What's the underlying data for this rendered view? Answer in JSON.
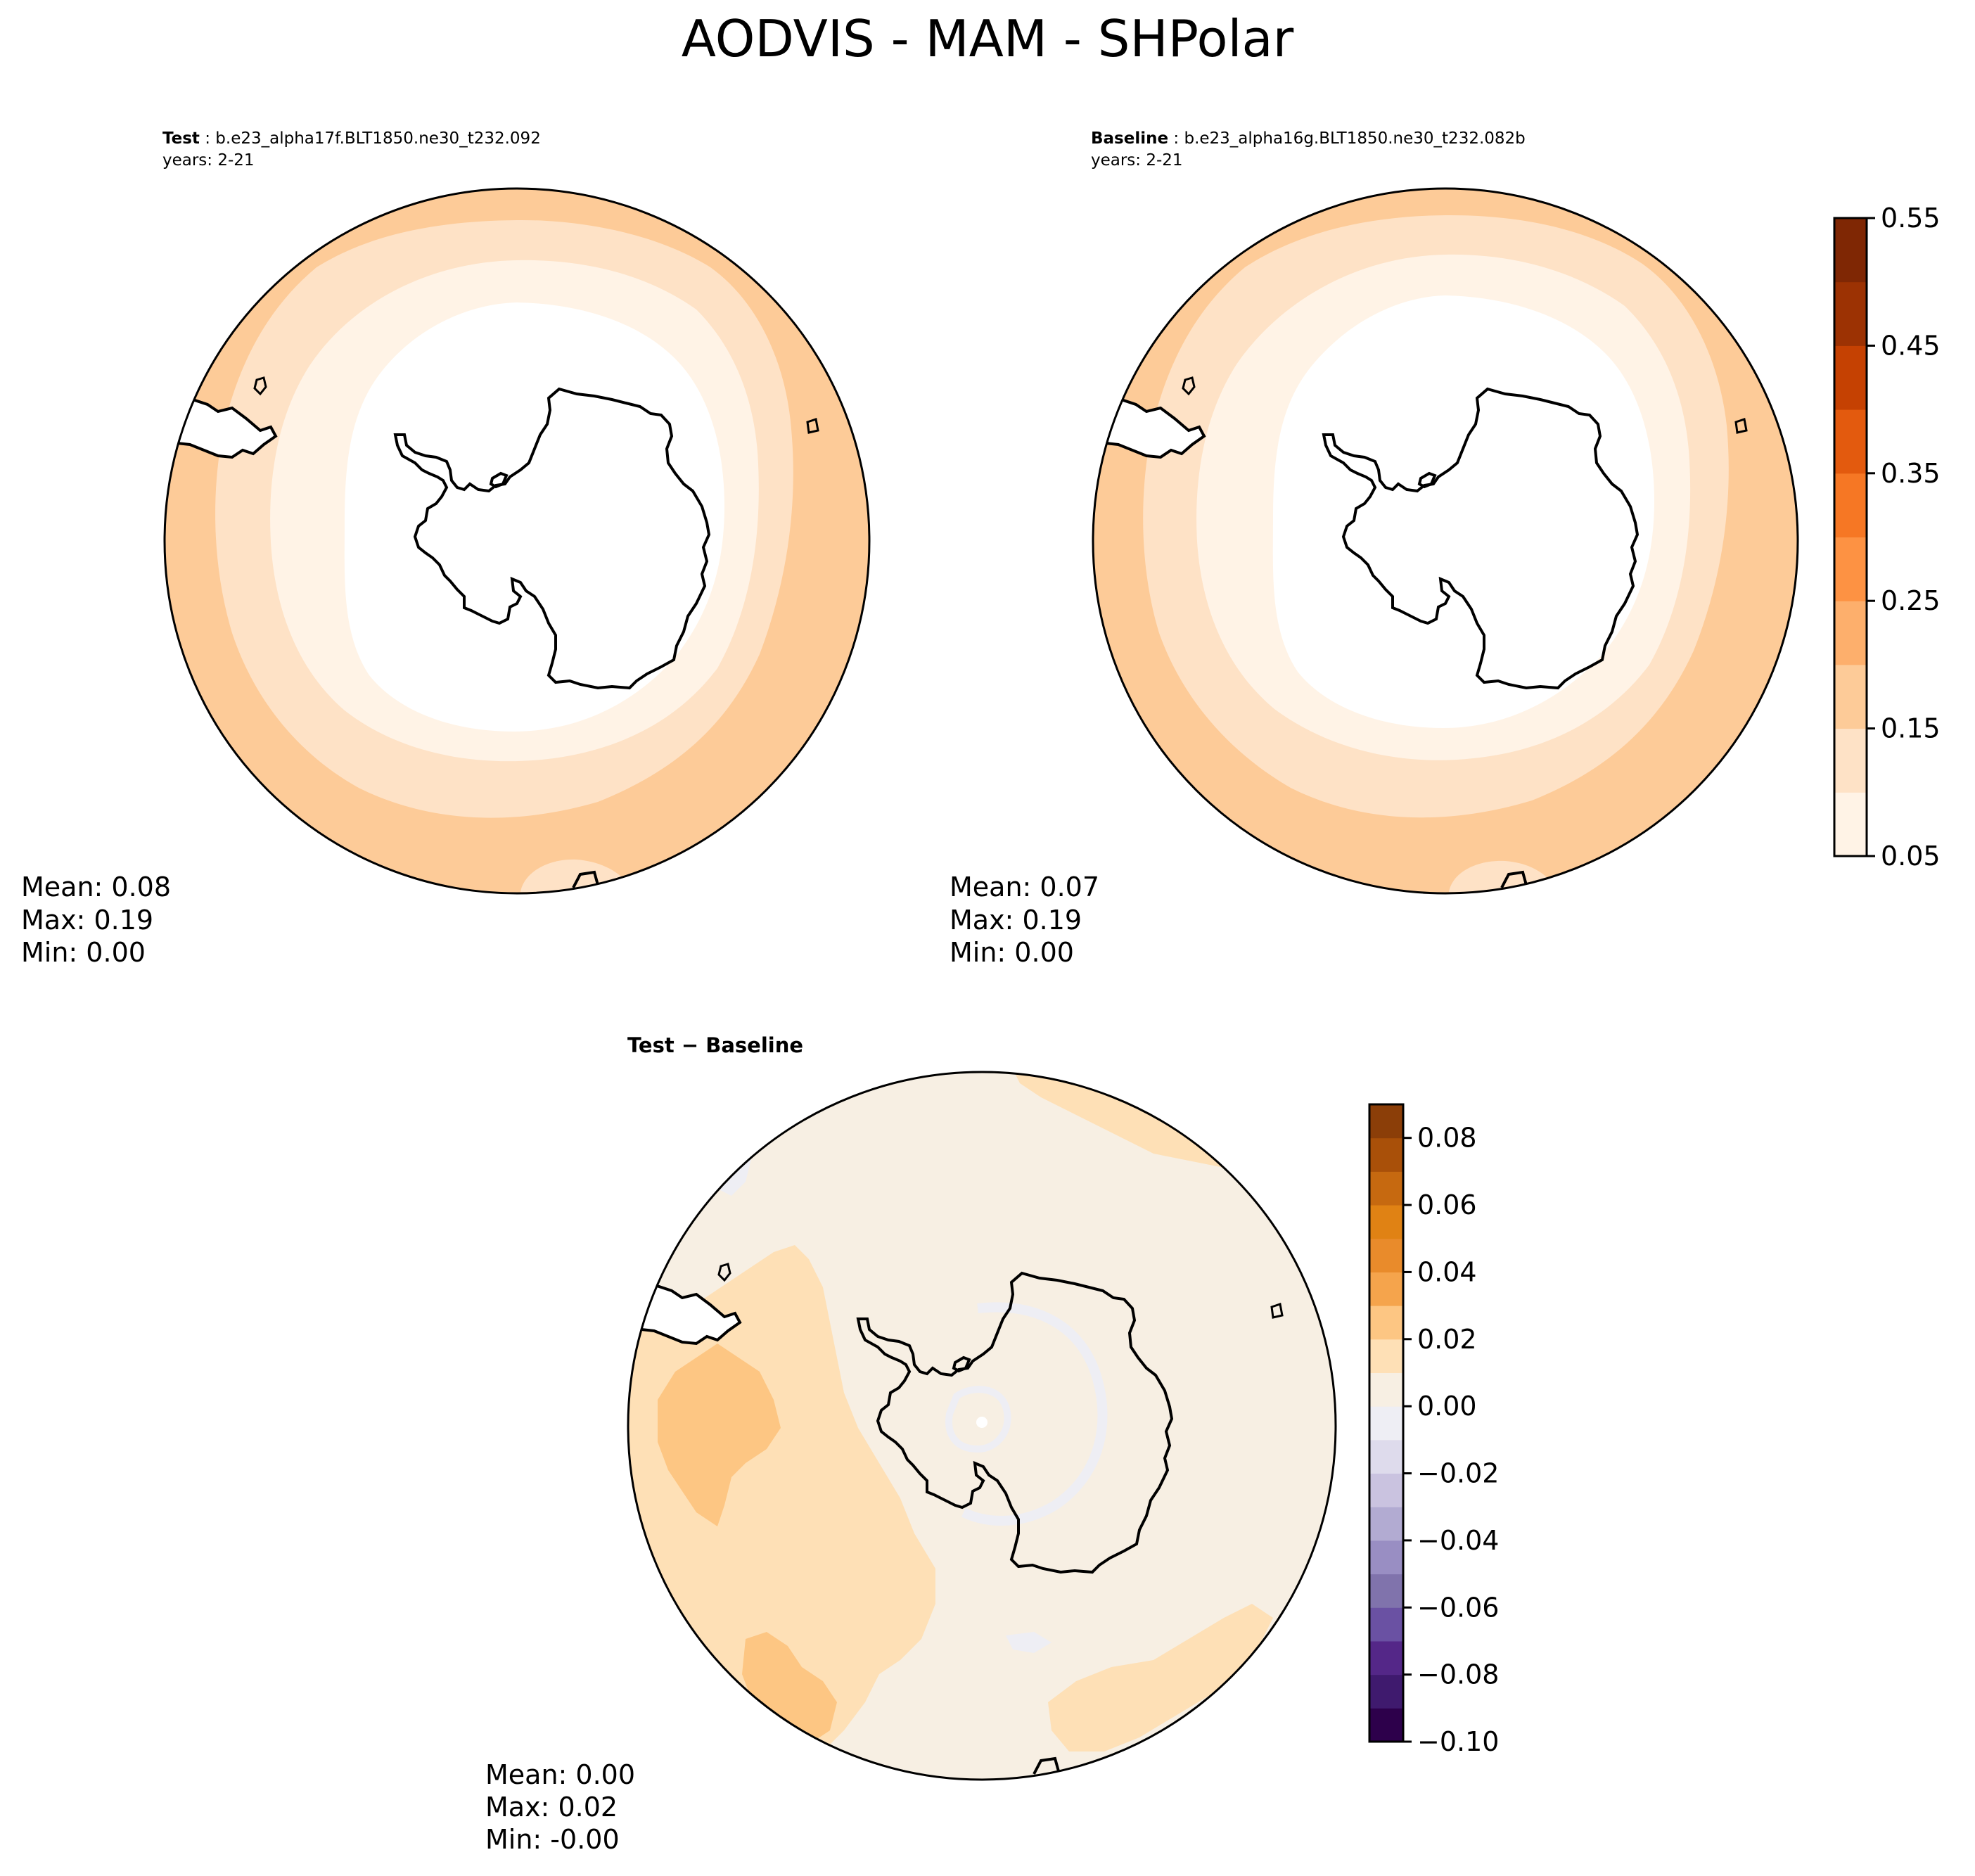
{
  "chart_data": {
    "type": "heatmap",
    "title": "AODVIS - MAM - SHPolar",
    "panels": [
      {
        "id": "test",
        "label_bold": "Test",
        "case_name": "b.e23_alpha17f.BLT1850.ne30_t232.092",
        "years": "years: 2-21",
        "projection": "south-polar-stereographic",
        "stats": {
          "mean": "Mean:  0.08",
          "max": "Max:  0.19",
          "min": "Min:  0.00"
        },
        "approx_field_bands_latitude": [
          {
            "from_lat": -90,
            "to_lat": -62,
            "level": "0.00-0.05"
          },
          {
            "from_lat": -62,
            "to_lat": -56,
            "level": "0.05-0.10"
          },
          {
            "from_lat": -56,
            "to_lat": -50,
            "level": "0.10-0.15"
          },
          {
            "from_lat": -50,
            "to_lat": -45,
            "level": "0.15-0.20"
          }
        ]
      },
      {
        "id": "baseline",
        "label_bold": "Baseline",
        "case_name": "b.e23_alpha16g.BLT1850.ne30_t232.082b",
        "years": "years: 2-21",
        "projection": "south-polar-stereographic",
        "stats": {
          "mean": "Mean:  0.07",
          "max": "Max:  0.19",
          "min": "Min:  0.00"
        },
        "approx_field_bands_latitude": [
          {
            "from_lat": -90,
            "to_lat": -61,
            "level": "0.00-0.05"
          },
          {
            "from_lat": -61,
            "to_lat": -55,
            "level": "0.05-0.10"
          },
          {
            "from_lat": -55,
            "to_lat": -49,
            "level": "0.10-0.15"
          },
          {
            "from_lat": -49,
            "to_lat": -45,
            "level": "0.15-0.20"
          }
        ]
      },
      {
        "id": "diff",
        "label": "Test − Baseline",
        "projection": "south-polar-stereographic",
        "stats": {
          "mean": "Mean:  0.00",
          "max": "Max:  0.02",
          "min": "Min: -0.00"
        },
        "dominant_level": "0.00-0.01",
        "secondary_level": "0.01-0.02",
        "minor_level": "-0.01-0.00"
      }
    ],
    "colorbars": [
      {
        "id": "main",
        "cmap": "Oranges",
        "range": [
          0.05,
          0.55
        ],
        "levels": [
          0.05,
          0.1,
          0.15,
          0.2,
          0.25,
          0.3,
          0.35,
          0.4,
          0.45,
          0.5,
          0.55
        ],
        "tick_values": [
          0.05,
          0.15,
          0.25,
          0.35,
          0.45,
          0.55
        ],
        "tick_labels": [
          "0.05",
          "0.15",
          "0.25",
          "0.35",
          "0.45",
          "0.55"
        ],
        "colors": [
          "#fff3e6",
          "#fee2c6",
          "#fdcb98",
          "#fdaf6c",
          "#fd9243",
          "#f67724",
          "#e35a0e",
          "#c54102",
          "#9c3203",
          "#7f2704"
        ]
      },
      {
        "id": "diff",
        "cmap": "PuOr_r",
        "range": [
          -0.1,
          0.09
        ],
        "levels": [
          -0.1,
          -0.09,
          -0.08,
          -0.07,
          -0.06,
          -0.05,
          -0.04,
          -0.03,
          -0.02,
          -0.01,
          0.0,
          0.01,
          0.02,
          0.03,
          0.04,
          0.05,
          0.06,
          0.07,
          0.08,
          0.09
        ],
        "tick_values": [
          -0.1,
          -0.08,
          -0.06,
          -0.04,
          -0.02,
          0.0,
          0.02,
          0.04,
          0.06,
          0.08
        ],
        "tick_labels": [
          "−0.10",
          "−0.08",
          "−0.06",
          "−0.04",
          "−0.02",
          "0.00",
          "0.02",
          "0.04",
          "0.06",
          "0.08"
        ],
        "colors": [
          "#2d004b",
          "#3f1a6e",
          "#542788",
          "#6a51a3",
          "#8073ac",
          "#998ec3",
          "#b2abd2",
          "#cac3e0",
          "#dedbec",
          "#eeeef4",
          "#f7efe3",
          "#fee0b6",
          "#fdc683",
          "#f5a44c",
          "#e98b2b",
          "#e08214",
          "#c66910",
          "#a95009",
          "#8b3e08"
        ]
      }
    ]
  }
}
